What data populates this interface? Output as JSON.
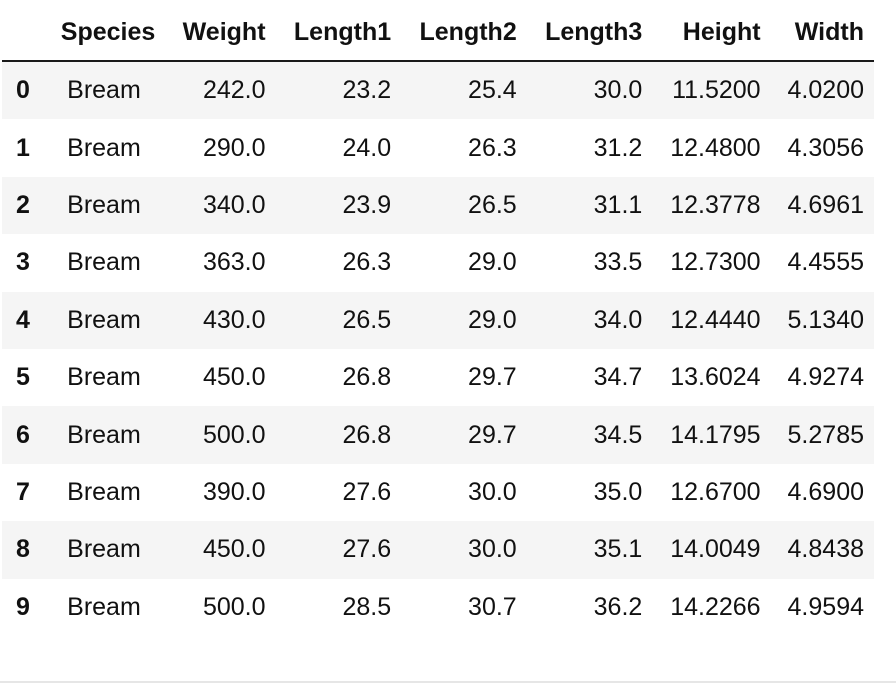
{
  "table": {
    "index_header": "",
    "columns": [
      "Species",
      "Weight",
      "Length1",
      "Length2",
      "Length3",
      "Height",
      "Width"
    ],
    "rows": [
      {
        "index": "0",
        "cells": [
          "Bream",
          "242.0",
          "23.2",
          "25.4",
          "30.0",
          "11.5200",
          "4.0200"
        ]
      },
      {
        "index": "1",
        "cells": [
          "Bream",
          "290.0",
          "24.0",
          "26.3",
          "31.2",
          "12.4800",
          "4.3056"
        ]
      },
      {
        "index": "2",
        "cells": [
          "Bream",
          "340.0",
          "23.9",
          "26.5",
          "31.1",
          "12.3778",
          "4.6961"
        ]
      },
      {
        "index": "3",
        "cells": [
          "Bream",
          "363.0",
          "26.3",
          "29.0",
          "33.5",
          "12.7300",
          "4.4555"
        ]
      },
      {
        "index": "4",
        "cells": [
          "Bream",
          "430.0",
          "26.5",
          "29.0",
          "34.0",
          "12.4440",
          "5.1340"
        ]
      },
      {
        "index": "5",
        "cells": [
          "Bream",
          "450.0",
          "26.8",
          "29.7",
          "34.7",
          "13.6024",
          "4.9274"
        ]
      },
      {
        "index": "6",
        "cells": [
          "Bream",
          "500.0",
          "26.8",
          "29.7",
          "34.5",
          "14.1795",
          "5.2785"
        ]
      },
      {
        "index": "7",
        "cells": [
          "Bream",
          "390.0",
          "27.6",
          "30.0",
          "35.0",
          "12.6700",
          "4.6900"
        ]
      },
      {
        "index": "8",
        "cells": [
          "Bream",
          "450.0",
          "27.6",
          "30.0",
          "35.1",
          "14.0049",
          "4.8438"
        ]
      },
      {
        "index": "9",
        "cells": [
          "Bream",
          "500.0",
          "28.5",
          "30.7",
          "36.2",
          "14.2266",
          "4.9594"
        ]
      }
    ]
  },
  "colors": {
    "row_stripe": "#f5f5f5",
    "header_rule": "#1a1a1a",
    "text": "#111111"
  }
}
